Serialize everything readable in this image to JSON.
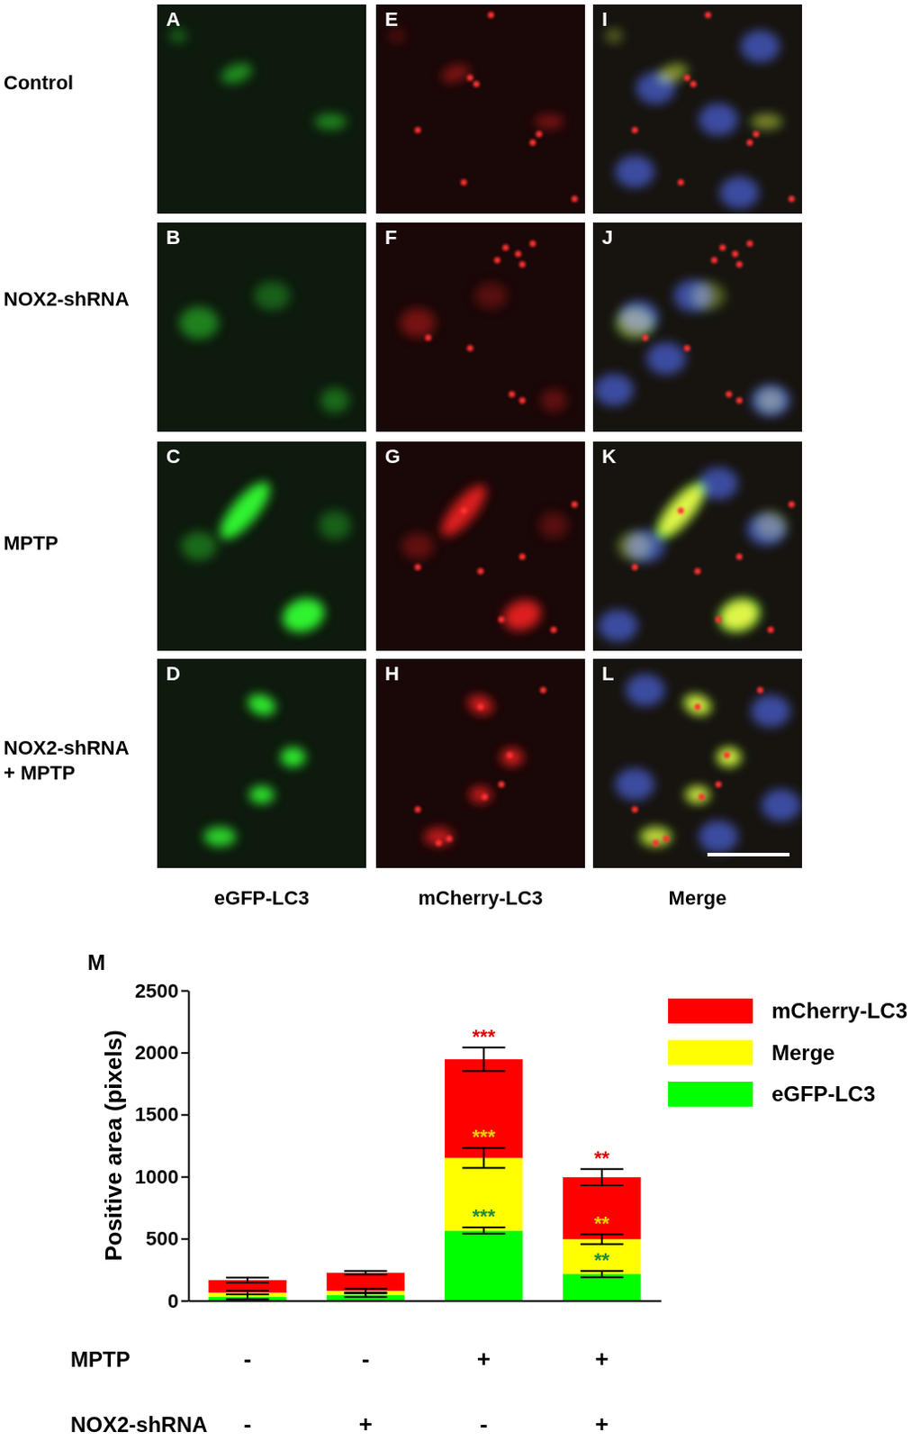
{
  "panels": {
    "row_labels": [
      [
        "Control"
      ],
      [
        "NOX2-shRNA"
      ],
      [
        "MPTP"
      ],
      [
        "NOX2-shRNA",
        "+ MPTP"
      ]
    ],
    "column_labels": [
      "eGFP-LC3",
      "mCherry-LC3",
      "Merge"
    ],
    "letters": [
      [
        "A",
        "E",
        "I"
      ],
      [
        "B",
        "F",
        "J"
      ],
      [
        "C",
        "G",
        "K"
      ],
      [
        "D",
        "H",
        "L"
      ]
    ]
  },
  "chart_data": {
    "type": "bar",
    "panel_label": "M",
    "y_label": "Positive area (pixels)",
    "stacked": true,
    "legend": "right",
    "tick_labels": "y",
    "categories": [
      null,
      null,
      null,
      null
    ],
    "condition_rows": [
      {
        "label": "MPTP",
        "values": [
          "-",
          "-",
          "+",
          "+"
        ]
      },
      {
        "label": "NOX2-shRNA",
        "values": [
          "-",
          "+",
          "-",
          "+"
        ]
      }
    ],
    "ylim": [
      0,
      2500
    ],
    "yticks": [
      0,
      500,
      1000,
      1500,
      2000,
      2500
    ],
    "series": [
      {
        "name": "eGFP-LC3",
        "color": "#00ff00",
        "values": [
          30,
          45,
          565,
          215
        ],
        "errors": [
          20,
          15,
          25,
          25
        ],
        "significance": [
          null,
          null,
          "***",
          "**"
        ]
      },
      {
        "name": "Merge",
        "color": "#ffff00",
        "values": [
          35,
          35,
          585,
          280
        ],
        "errors": [
          15,
          15,
          80,
          40
        ],
        "significance": [
          null,
          null,
          "***",
          "**"
        ]
      },
      {
        "name": "mCherry-LC3",
        "color": "#ff0000",
        "values": [
          100,
          145,
          795,
          500
        ],
        "errors": [
          20,
          15,
          95,
          65
        ],
        "significance": [
          null,
          null,
          "***",
          "**"
        ]
      }
    ]
  }
}
